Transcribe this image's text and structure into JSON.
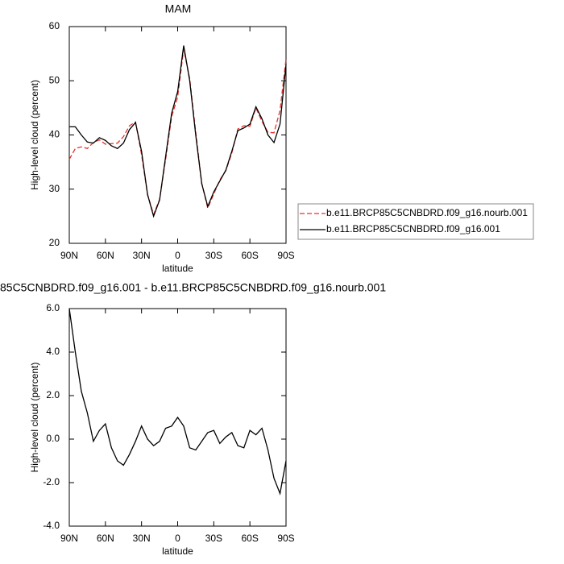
{
  "chart_data": [
    {
      "type": "line",
      "title": "MAM",
      "x_label": "latitude",
      "y_label": "High-level cloud (percent)",
      "x": [
        90,
        85,
        80,
        75,
        70,
        65,
        60,
        55,
        50,
        45,
        40,
        35,
        30,
        25,
        20,
        15,
        10,
        5,
        0,
        -5,
        -10,
        -15,
        -20,
        -25,
        -30,
        -35,
        -40,
        -45,
        -50,
        -55,
        -60,
        -65,
        -70,
        -75,
        -80,
        -85,
        -90
      ],
      "series": [
        {
          "name": "b.e11.BRCP85C5CNBDRD.f09_g16.nourb.001",
          "color": "#e8302a",
          "dashed": true,
          "values": [
            35.5,
            37.5,
            37.8,
            37.5,
            38.6,
            39.1,
            38.3,
            38.4,
            38.5,
            39.7,
            41.7,
            42.4,
            36.4,
            29,
            25.3,
            28.1,
            35.5,
            43.4,
            47,
            55.9,
            50.4,
            40.5,
            31.1,
            26.5,
            29.1,
            31.7,
            33.4,
            36.7,
            41.1,
            41.7,
            41.6,
            45,
            42.5,
            40.5,
            40.4,
            44.5,
            54
          ]
        },
        {
          "name": "b.e11.BRCP85C5CNBDRD.f09_g16.001",
          "color": "#000000",
          "dashed": false,
          "values": [
            41.5,
            41.5,
            40,
            38.7,
            38.5,
            39.5,
            39,
            38,
            37.5,
            38.5,
            41,
            42.3,
            37,
            29,
            25,
            28,
            36,
            44,
            48,
            56.5,
            50,
            40,
            31,
            26.8,
            29.5,
            31.5,
            33.5,
            37,
            40.8,
            41.3,
            42,
            45.2,
            43,
            40,
            38.6,
            42,
            53
          ]
        }
      ],
      "xlim": [
        90,
        -90
      ],
      "xticks": [
        {
          "value": 90,
          "label": "90N"
        },
        {
          "value": 60,
          "label": "60N"
        },
        {
          "value": 30,
          "label": "30N"
        },
        0,
        {
          "value": -30,
          "label": "30S"
        },
        {
          "value": -60,
          "label": "60S"
        },
        {
          "value": -90,
          "label": "90S"
        }
      ],
      "ylim": [
        20,
        60
      ],
      "yticks": [
        20,
        30,
        40,
        50,
        60
      ],
      "legend": "right"
    },
    {
      "type": "line",
      "title": "85C5CNBDRD.f09_g16.001 - b.e11.BRCP85C5CNBDRD.f09_g16.nourb.001",
      "x_label": "latitude",
      "y_label": "High-level cloud (percent)",
      "x": [
        90,
        85,
        80,
        75,
        70,
        65,
        60,
        55,
        50,
        45,
        40,
        35,
        30,
        25,
        20,
        15,
        10,
        5,
        0,
        -5,
        -10,
        -15,
        -20,
        -25,
        -30,
        -35,
        -40,
        -45,
        -50,
        -55,
        -60,
        -65,
        -70,
        -75,
        -80,
        -85,
        -90
      ],
      "color": "#000000",
      "values": [
        6,
        4,
        2.2,
        1.2,
        -0.1,
        0.4,
        0.7,
        -0.4,
        -1,
        -1.2,
        -0.7,
        -0.1,
        0.6,
        0,
        -0.3,
        -0.1,
        0.5,
        0.6,
        1,
        0.6,
        -0.4,
        -0.5,
        -0.1,
        0.3,
        0.4,
        -0.2,
        0.1,
        0.3,
        -0.3,
        -0.4,
        0.4,
        0.2,
        0.5,
        -0.5,
        -1.8,
        -2.5,
        -1
      ],
      "xlim": [
        90,
        -90
      ],
      "xticks": [
        {
          "value": 90,
          "label": "90N"
        },
        {
          "value": 60,
          "label": "60N"
        },
        {
          "value": 30,
          "label": "30N"
        },
        0,
        {
          "value": -30,
          "label": "30S"
        },
        {
          "value": -60,
          "label": "60S"
        },
        {
          "value": -90,
          "label": "90S"
        }
      ],
      "ylim": [
        -4,
        6
      ],
      "yticks": [
        {
          "value": -4,
          "label": "-4.0"
        },
        {
          "value": -2,
          "label": "-2.0"
        },
        {
          "value": 0,
          "label": "0.0"
        },
        {
          "value": 2,
          "label": "2.0"
        },
        {
          "value": 4,
          "label": "4.0"
        },
        {
          "value": 6,
          "label": "6.0"
        }
      ]
    }
  ]
}
